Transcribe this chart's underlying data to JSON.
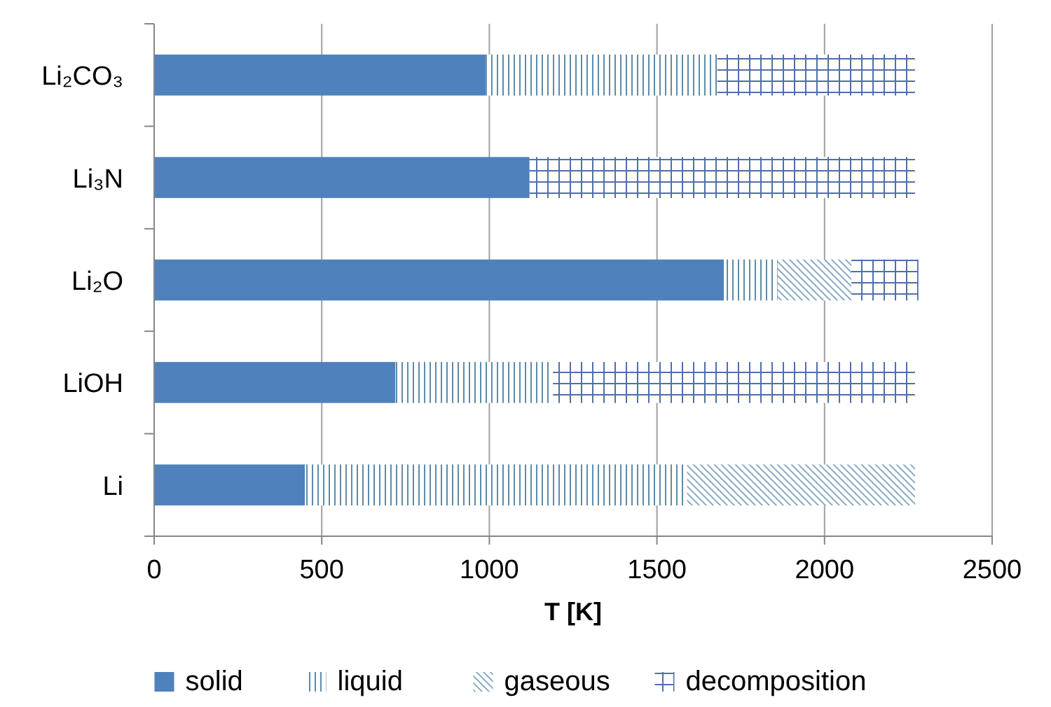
{
  "chart_data": {
    "type": "bar",
    "orientation": "horizontal",
    "stacked": true,
    "xlabel": "T [K]",
    "categories": [
      "Li₂CO₃",
      "Li₃N",
      "Li₂O",
      "LiOH",
      "Li"
    ],
    "series": [
      {
        "name": "solid",
        "color": "#4f81bd",
        "values": [
          990,
          1120,
          1700,
          720,
          450
        ]
      },
      {
        "name": "liquid",
        "color": "#5f8aa8",
        "values": [
          690,
          null,
          160,
          470,
          1140
        ]
      },
      {
        "name": "gaseous",
        "color": "#7fa3c0",
        "values": [
          null,
          null,
          220,
          null,
          680
        ]
      },
      {
        "name": "decomposition",
        "color": "#4f6fa8",
        "values": [
          590,
          1150,
          200,
          1080,
          null
        ]
      }
    ],
    "xlim": [
      0,
      2500
    ],
    "xticks": [
      0,
      500,
      1000,
      1500,
      2000,
      2500
    ],
    "grid": "x",
    "legend": "bottom"
  }
}
